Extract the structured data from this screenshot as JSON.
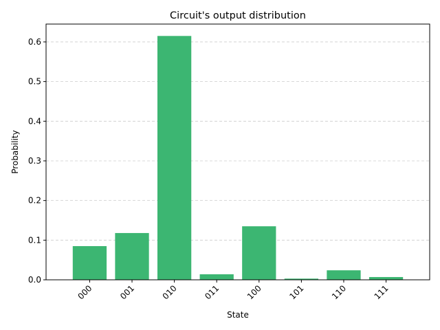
{
  "chart_data": {
    "type": "bar",
    "title": "Circuit's output distribution",
    "xlabel": "State",
    "ylabel": "Probability",
    "categories": [
      "000",
      "001",
      "010",
      "011",
      "100",
      "101",
      "110",
      "111"
    ],
    "values": [
      0.085,
      0.118,
      0.615,
      0.014,
      0.135,
      0.003,
      0.024,
      0.007
    ],
    "ylim": [
      0,
      0.645
    ],
    "yticks": [
      0.0,
      0.1,
      0.2,
      0.3,
      0.4,
      0.5,
      0.6
    ],
    "ytick_labels": [
      "0.0",
      "0.1",
      "0.2",
      "0.3",
      "0.4",
      "0.5",
      "0.6"
    ],
    "grid": "y-dashed",
    "bar_color": "#3cb672"
  }
}
